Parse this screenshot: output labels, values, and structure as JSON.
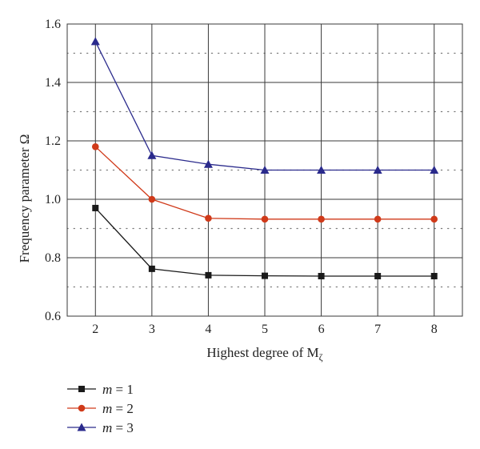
{
  "chart_data": {
    "type": "line",
    "xlabel": "Highest degree of M",
    "xlabel_subscript": "ζ",
    "ylabel": "Frequency parameter Ω",
    "x": [
      2,
      3,
      4,
      5,
      6,
      7,
      8
    ],
    "x_ticks": [
      "2",
      "3",
      "4",
      "5",
      "6",
      "7",
      "8"
    ],
    "y_ticks": [
      "0.6",
      "0.8",
      "1.0",
      "1.2",
      "1.4",
      "1.6"
    ],
    "xlim": [
      1.5,
      8.5
    ],
    "ylim": [
      0.6,
      1.6
    ],
    "grid": "solid major, dotted minor horizontal",
    "legend_position": "below",
    "series": [
      {
        "name": "m = 1",
        "legend_var": "m",
        "legend_rest": " = 1",
        "marker": "square",
        "color": "#1a1a1a",
        "values": [
          0.97,
          0.762,
          0.74,
          0.738,
          0.737,
          0.737,
          0.737
        ]
      },
      {
        "name": "m = 2",
        "legend_var": "m",
        "legend_rest": " = 2",
        "marker": "circle",
        "color": "#d03a1a",
        "values": [
          1.18,
          1.0,
          0.935,
          0.932,
          0.932,
          0.932,
          0.932
        ]
      },
      {
        "name": "m = 3",
        "legend_var": "m",
        "legend_rest": " = 3",
        "marker": "triangle",
        "color": "#2a2a8c",
        "values": [
          1.54,
          1.15,
          1.12,
          1.1,
          1.1,
          1.1,
          1.1
        ]
      }
    ]
  }
}
